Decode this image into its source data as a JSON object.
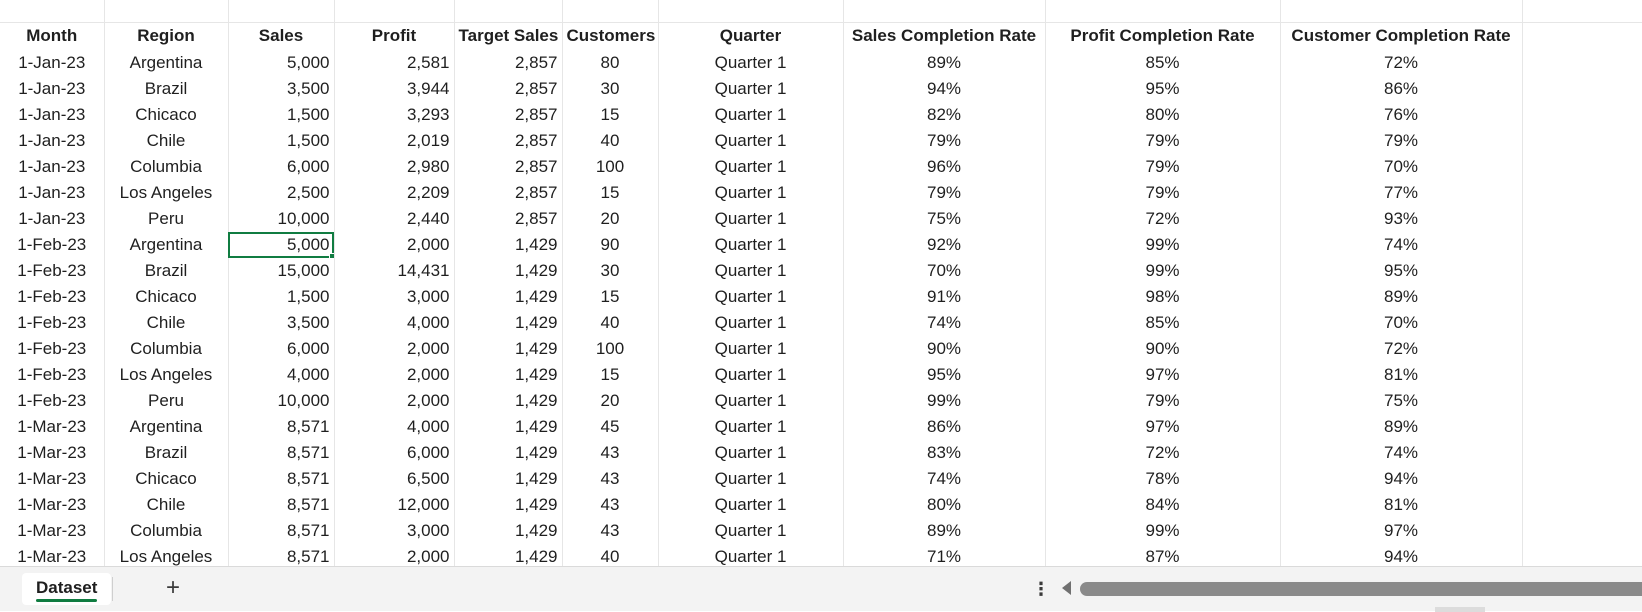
{
  "sheet": {
    "headers": [
      "Month",
      "Region",
      "Sales",
      "Profit",
      "Target Sales",
      "Customers",
      "Quarter",
      "Sales Completion Rate",
      "Profit Completion Rate",
      "Customer Completion Rate"
    ],
    "rows": [
      [
        "1-Jan-23",
        "Argentina",
        "5,000",
        "2,581",
        "2,857",
        "80",
        "Quarter 1",
        "89%",
        "85%",
        "72%"
      ],
      [
        "1-Jan-23",
        "Brazil",
        "3,500",
        "3,944",
        "2,857",
        "30",
        "Quarter 1",
        "94%",
        "95%",
        "86%"
      ],
      [
        "1-Jan-23",
        "Chicaco",
        "1,500",
        "3,293",
        "2,857",
        "15",
        "Quarter 1",
        "82%",
        "80%",
        "76%"
      ],
      [
        "1-Jan-23",
        "Chile",
        "1,500",
        "2,019",
        "2,857",
        "40",
        "Quarter 1",
        "79%",
        "79%",
        "79%"
      ],
      [
        "1-Jan-23",
        "Columbia",
        "6,000",
        "2,980",
        "2,857",
        "100",
        "Quarter 1",
        "96%",
        "79%",
        "70%"
      ],
      [
        "1-Jan-23",
        "Los Angeles",
        "2,500",
        "2,209",
        "2,857",
        "15",
        "Quarter 1",
        "79%",
        "79%",
        "77%"
      ],
      [
        "1-Jan-23",
        "Peru",
        "10,000",
        "2,440",
        "2,857",
        "20",
        "Quarter 1",
        "75%",
        "72%",
        "93%"
      ],
      [
        "1-Feb-23",
        "Argentina",
        "5,000",
        "2,000",
        "1,429",
        "90",
        "Quarter 1",
        "92%",
        "99%",
        "74%"
      ],
      [
        "1-Feb-23",
        "Brazil",
        "15,000",
        "14,431",
        "1,429",
        "30",
        "Quarter 1",
        "70%",
        "99%",
        "95%"
      ],
      [
        "1-Feb-23",
        "Chicaco",
        "1,500",
        "3,000",
        "1,429",
        "15",
        "Quarter 1",
        "91%",
        "98%",
        "89%"
      ],
      [
        "1-Feb-23",
        "Chile",
        "3,500",
        "4,000",
        "1,429",
        "40",
        "Quarter 1",
        "74%",
        "85%",
        "70%"
      ],
      [
        "1-Feb-23",
        "Columbia",
        "6,000",
        "2,000",
        "1,429",
        "100",
        "Quarter 1",
        "90%",
        "90%",
        "72%"
      ],
      [
        "1-Feb-23",
        "Los Angeles",
        "4,000",
        "2,000",
        "1,429",
        "15",
        "Quarter 1",
        "95%",
        "97%",
        "81%"
      ],
      [
        "1-Feb-23",
        "Peru",
        "10,000",
        "2,000",
        "1,429",
        "20",
        "Quarter 1",
        "99%",
        "79%",
        "75%"
      ],
      [
        "1-Mar-23",
        "Argentina",
        "8,571",
        "4,000",
        "1,429",
        "45",
        "Quarter 1",
        "86%",
        "97%",
        "89%"
      ],
      [
        "1-Mar-23",
        "Brazil",
        "8,571",
        "6,000",
        "1,429",
        "43",
        "Quarter 1",
        "83%",
        "72%",
        "74%"
      ],
      [
        "1-Mar-23",
        "Chicaco",
        "8,571",
        "6,500",
        "1,429",
        "43",
        "Quarter 1",
        "74%",
        "78%",
        "94%"
      ],
      [
        "1-Mar-23",
        "Chile",
        "8,571",
        "12,000",
        "1,429",
        "43",
        "Quarter 1",
        "80%",
        "84%",
        "81%"
      ],
      [
        "1-Mar-23",
        "Columbia",
        "8,571",
        "3,000",
        "1,429",
        "43",
        "Quarter 1",
        "89%",
        "99%",
        "97%"
      ],
      [
        "1-Mar-23",
        "Los Angeles",
        "8,571",
        "2,000",
        "1,429",
        "40",
        "Quarter 1",
        "71%",
        "87%",
        "94%"
      ]
    ],
    "selected_cell": {
      "row": 7,
      "col": 2
    }
  },
  "tabbar": {
    "active_tab": "Dataset",
    "add_sheet_label": "+",
    "more_label": "⋮"
  },
  "colors": {
    "accent": "#107c41",
    "gridline": "#e6e6e6"
  }
}
